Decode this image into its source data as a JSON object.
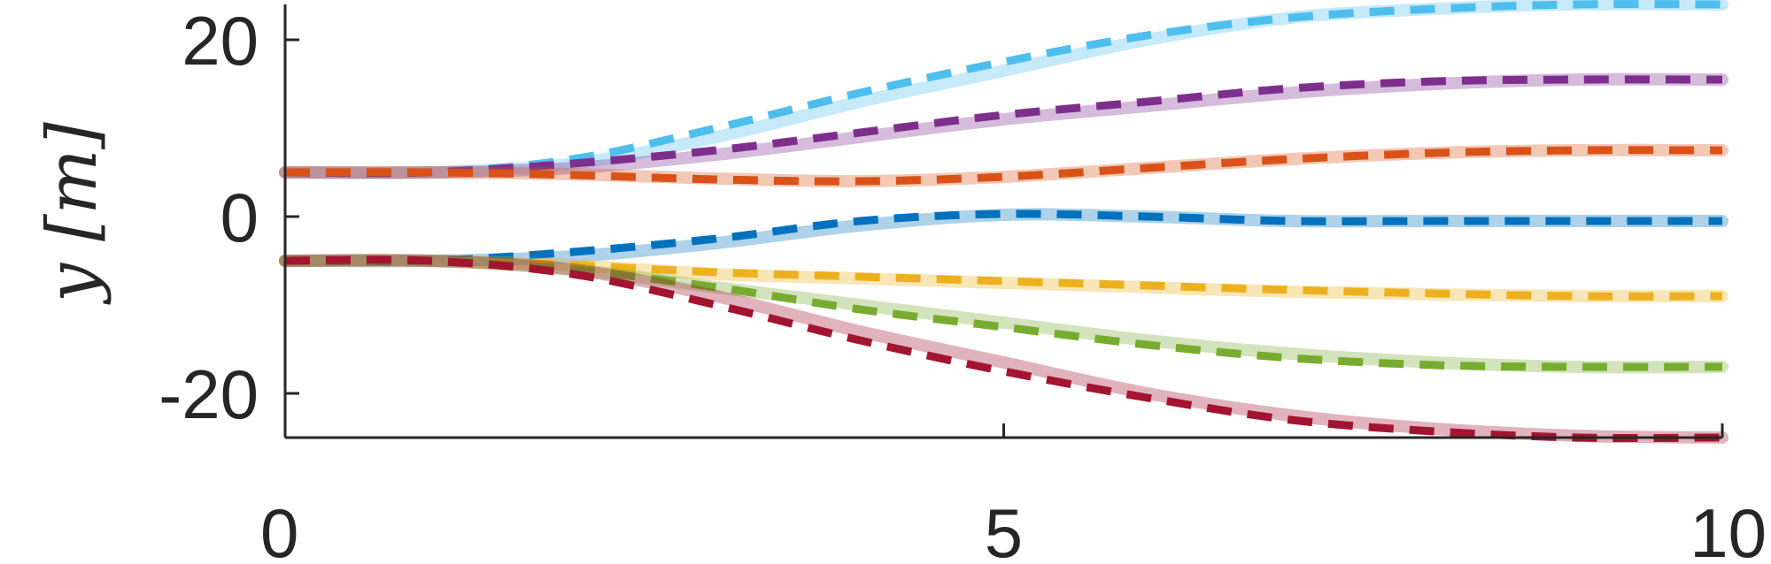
{
  "chart_data": {
    "type": "line",
    "title": "",
    "xlabel": "",
    "ylabel": "y [m]",
    "xlim": [
      0,
      10
    ],
    "ylim": [
      -25,
      24
    ],
    "x_ticks": [
      0,
      5,
      10
    ],
    "x_tick_labels": [
      "0",
      "5",
      "10"
    ],
    "y_ticks": [
      -20,
      0,
      20
    ],
    "y_tick_labels": [
      "-20",
      "0",
      "20"
    ],
    "grid": false,
    "legend": "none",
    "axis_color": "#262626",
    "x": [
      0,
      1,
      2,
      3,
      4,
      5,
      6,
      7,
      8,
      9,
      10
    ],
    "series": [
      {
        "color": "#4DBEEE",
        "reference": [
          5,
          5,
          6,
          9,
          13,
          16.5,
          20,
          22.5,
          23.5,
          24,
          24
        ],
        "actual": [
          5,
          5,
          6.5,
          10,
          14,
          17.5,
          20.5,
          22.5,
          23.5,
          24,
          24
        ]
      },
      {
        "color": "#7E2F8E",
        "reference": [
          5,
          5,
          5.5,
          7,
          9,
          11,
          12.5,
          14,
          15,
          15.5,
          15.5
        ],
        "actual": [
          5,
          5,
          6,
          7.5,
          9.5,
          11.5,
          13,
          14.5,
          15.3,
          15.5,
          15.5
        ]
      },
      {
        "color": "#D95319",
        "reference": [
          5,
          5,
          4.8,
          4.3,
          4,
          4.5,
          5.5,
          6.5,
          7.2,
          7.5,
          7.5
        ],
        "actual": [
          5,
          5,
          4.7,
          4.2,
          4,
          4.5,
          5.5,
          6.5,
          7.2,
          7.5,
          7.5
        ]
      },
      {
        "color": "#0072BD",
        "reference": [
          -5,
          -5,
          -4.5,
          -3,
          -1,
          0.2,
          0,
          -0.5,
          -0.5,
          -0.5,
          -0.5
        ],
        "actual": [
          -5,
          -5,
          -4,
          -2.5,
          -0.5,
          0.3,
          0,
          -0.5,
          -0.5,
          -0.5,
          -0.5
        ]
      },
      {
        "color": "#EDB120",
        "reference": [
          -5,
          -5,
          -5.5,
          -6.5,
          -7,
          -7.5,
          -8,
          -8.5,
          -8.8,
          -9,
          -9
        ],
        "actual": [
          -5,
          -5,
          -5.5,
          -6.3,
          -6.8,
          -7.3,
          -7.8,
          -8.3,
          -8.7,
          -9,
          -9
        ]
      },
      {
        "color": "#77AC30",
        "reference": [
          -5,
          -5,
          -6,
          -8,
          -10,
          -12,
          -14,
          -15.5,
          -16.5,
          -17,
          -17
        ],
        "actual": [
          -5,
          -5,
          -6,
          -8,
          -10.5,
          -12.5,
          -14.5,
          -16,
          -16.8,
          -17,
          -17
        ]
      },
      {
        "color": "#A2142F",
        "reference": [
          -5,
          -5,
          -6,
          -9,
          -13,
          -16.5,
          -20,
          -22.5,
          -24,
          -24.8,
          -25
        ],
        "actual": [
          -5,
          -5,
          -6.5,
          -10,
          -14,
          -17.5,
          -20.5,
          -23,
          -24.3,
          -25,
          -25
        ]
      }
    ]
  }
}
